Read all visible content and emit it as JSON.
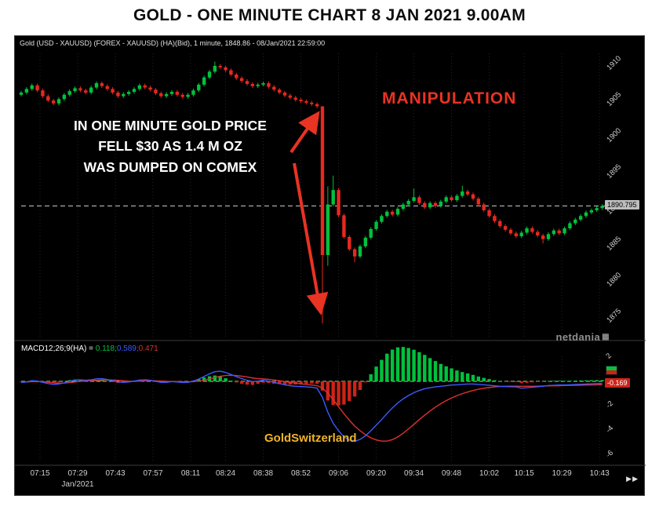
{
  "title": "GOLD - ONE MINUTE CHART 8 JAN 2021 9.00AM",
  "chart_header": "Gold (USD - XAUUSD) (FOREX - XAUUSD) (HA)(Bid), 1 minute, 1848.86 - 08/Jan/2021 22:59:00",
  "annotations": {
    "manipulation": "MANIPULATION",
    "note_lines": [
      "IN ONE MINUTE  GOLD PRICE",
      "FELL $30 AS 1.4 M OZ",
      "WAS DUMPED ON COMEX"
    ],
    "watermark": "GoldSwitzerland",
    "logo_text": "netdania",
    "pager": "▶▶"
  },
  "macd_label": {
    "p0": "MACD12;26;9(HA) = ",
    "p1": "0.118;",
    "p2": "0.589;",
    "p3": "0.471"
  },
  "badges": {
    "current_price": "1890.795",
    "macd_value": "-0.169"
  },
  "colors": {
    "up": "#00c23c",
    "down": "#e8281e",
    "macd_line": "#3b5bff",
    "signal_line": "#e03030",
    "hist_up": "#00c23c",
    "hist_down": "#cc2418",
    "annotation_red": "#e93323",
    "watermark_gold": "#f0b429",
    "price_dash_line": "#c8c8c8",
    "zero_line": "#cfcf8f",
    "axis_text": "#d0d0d0",
    "badge_red": "#cc2418"
  },
  "chart_data": {
    "type": "candlestick",
    "title": "Gold XAUUSD 1-minute Heikin-Ashi with MACD",
    "date_label": "Jan/2021",
    "x_ticks": [
      {
        "minute": 435,
        "label": "07:15"
      },
      {
        "minute": 449,
        "label": "07:29"
      },
      {
        "minute": 463,
        "label": "07:43"
      },
      {
        "minute": 477,
        "label": "07:57"
      },
      {
        "minute": 491,
        "label": "08:11"
      },
      {
        "minute": 504,
        "label": "08:24"
      },
      {
        "minute": 518,
        "label": "08:38"
      },
      {
        "minute": 532,
        "label": "08:52"
      },
      {
        "minute": 546,
        "label": "09:06"
      },
      {
        "minute": 560,
        "label": "09:20"
      },
      {
        "minute": 574,
        "label": "09:34"
      },
      {
        "minute": 588,
        "label": "09:48"
      },
      {
        "minute": 602,
        "label": "10:02"
      },
      {
        "minute": 615,
        "label": "10:15"
      },
      {
        "minute": 629,
        "label": "10:29"
      },
      {
        "minute": 643,
        "label": "10:43"
      }
    ],
    "price_panel": {
      "ylim": [
        1874,
        1911.5
      ],
      "yticks": [
        1910,
        1905,
        1900,
        1895,
        1890,
        1885,
        1880,
        1875
      ],
      "current_price": 1890.795,
      "start_minute": 428,
      "interval_minutes": 2,
      "first_open": 1906.2,
      "closes": [
        1906.5,
        1907.0,
        1907.5,
        1906.8,
        1906.0,
        1905.4,
        1905.0,
        1905.6,
        1906.2,
        1906.7,
        1907.1,
        1906.8,
        1906.5,
        1907.2,
        1907.8,
        1907.4,
        1907.0,
        1906.5,
        1906.0,
        1906.3,
        1906.6,
        1907.0,
        1907.5,
        1907.2,
        1906.9,
        1906.4,
        1906.0,
        1906.3,
        1906.6,
        1906.2,
        1905.9,
        1906.2,
        1906.8,
        1907.6,
        1908.6,
        1909.4,
        1910.2,
        1910.0,
        1909.6,
        1909.0,
        1908.5,
        1908.1,
        1907.7,
        1907.4,
        1907.6,
        1907.8,
        1907.3,
        1906.9,
        1906.5,
        1906.1,
        1905.8,
        1905.5,
        1905.3,
        1905.1,
        1904.9,
        1904.6,
        1884.0,
        1891.0,
        1893.0,
        1889.5,
        1886.5,
        1884.8,
        1883.8,
        1885.2,
        1886.4,
        1887.6,
        1888.6,
        1889.4,
        1890.0,
        1889.6,
        1890.4,
        1891.0,
        1891.5,
        1892.0,
        1891.2,
        1890.6,
        1891.2,
        1890.8,
        1891.4,
        1892.0,
        1891.6,
        1892.2,
        1892.8,
        1892.4,
        1891.8,
        1891.0,
        1890.2,
        1889.4,
        1888.7,
        1888.0,
        1887.5,
        1887.0,
        1886.6,
        1887.1,
        1887.7,
        1887.2,
        1886.7,
        1886.2,
        1886.9,
        1887.4,
        1887.0,
        1887.7,
        1888.4,
        1888.9,
        1889.4,
        1889.9,
        1890.2,
        1890.5,
        1890.795
      ],
      "wick_overrides": {
        "36": {
          "high": 1910.8
        },
        "56": {
          "low": 1874.5,
          "high": 1904.6
        },
        "57": {
          "low": 1882.5,
          "high": 1893.5
        },
        "58": {
          "high": 1895.0
        },
        "62": {
          "low": 1883.0
        },
        "73": {
          "high": 1893.2
        },
        "82": {
          "high": 1893.6
        },
        "97": {
          "low": 1885.6
        }
      }
    },
    "macd_panel": {
      "params": "12;26;9",
      "ylim": [
        -6.5,
        2.2
      ],
      "yticks": [
        2,
        -2,
        -4,
        -6
      ],
      "current_value": -0.169,
      "macd": [
        -0.1,
        -0.05,
        0.05,
        0.02,
        -0.08,
        -0.18,
        -0.25,
        -0.22,
        -0.12,
        0.0,
        0.1,
        0.12,
        0.08,
        0.12,
        0.2,
        0.22,
        0.15,
        0.05,
        -0.05,
        -0.08,
        -0.05,
        0.02,
        0.1,
        0.12,
        0.08,
        0.0,
        -0.08,
        -0.08,
        -0.02,
        -0.05,
        -0.1,
        -0.08,
        0.02,
        0.18,
        0.4,
        0.6,
        0.78,
        0.82,
        0.72,
        0.55,
        0.38,
        0.22,
        0.08,
        -0.02,
        0.02,
        0.08,
        0.02,
        -0.08,
        -0.18,
        -0.28,
        -0.35,
        -0.4,
        -0.42,
        -0.45,
        -0.48,
        -0.55,
        -1.3,
        -2.5,
        -3.4,
        -4.0,
        -4.5,
        -4.75,
        -4.85,
        -4.7,
        -4.4,
        -4.0,
        -3.55,
        -3.1,
        -2.6,
        -2.15,
        -1.75,
        -1.42,
        -1.15,
        -0.92,
        -0.74,
        -0.6,
        -0.52,
        -0.45,
        -0.4,
        -0.35,
        -0.3,
        -0.28,
        -0.25,
        -0.22,
        -0.22,
        -0.25,
        -0.28,
        -0.32,
        -0.36,
        -0.4,
        -0.42,
        -0.44,
        -0.45,
        -0.55,
        -0.52,
        -0.48,
        -0.44,
        -0.4,
        -0.34,
        -0.32,
        -0.3,
        -0.3,
        -0.28,
        -0.26,
        -0.24,
        -0.22,
        -0.2,
        -0.18,
        -0.169
      ],
      "signal": [
        -0.05,
        -0.05,
        -0.03,
        -0.02,
        -0.03,
        -0.07,
        -0.12,
        -0.15,
        -0.14,
        -0.1,
        -0.05,
        0.0,
        0.03,
        0.05,
        0.08,
        0.11,
        0.12,
        0.11,
        0.08,
        0.04,
        0.01,
        0.0,
        0.02,
        0.04,
        0.05,
        0.04,
        0.02,
        0.0,
        -0.01,
        -0.02,
        -0.03,
        -0.04,
        -0.03,
        0.01,
        0.09,
        0.19,
        0.31,
        0.41,
        0.47,
        0.49,
        0.47,
        0.42,
        0.35,
        0.27,
        0.22,
        0.19,
        0.16,
        0.11,
        0.05,
        -0.02,
        -0.09,
        -0.15,
        -0.2,
        -0.25,
        -0.3,
        -0.35,
        -0.55,
        -0.95,
        -1.48,
        -2.05,
        -2.62,
        -3.15,
        -3.62,
        -4.0,
        -4.32,
        -4.57,
        -4.74,
        -4.84,
        -4.84,
        -4.72,
        -4.5,
        -4.2,
        -3.85,
        -3.48,
        -3.1,
        -2.74,
        -2.4,
        -2.09,
        -1.81,
        -1.56,
        -1.35,
        -1.16,
        -1.0,
        -0.86,
        -0.74,
        -0.64,
        -0.56,
        -0.5,
        -0.45,
        -0.42,
        -0.4,
        -0.39,
        -0.39,
        -0.4,
        -0.4,
        -0.4,
        -0.39,
        -0.38,
        -0.37,
        -0.36,
        -0.35,
        -0.34,
        -0.33,
        -0.32,
        -0.31,
        -0.3,
        -0.29,
        -0.28,
        -0.27
      ]
    }
  }
}
